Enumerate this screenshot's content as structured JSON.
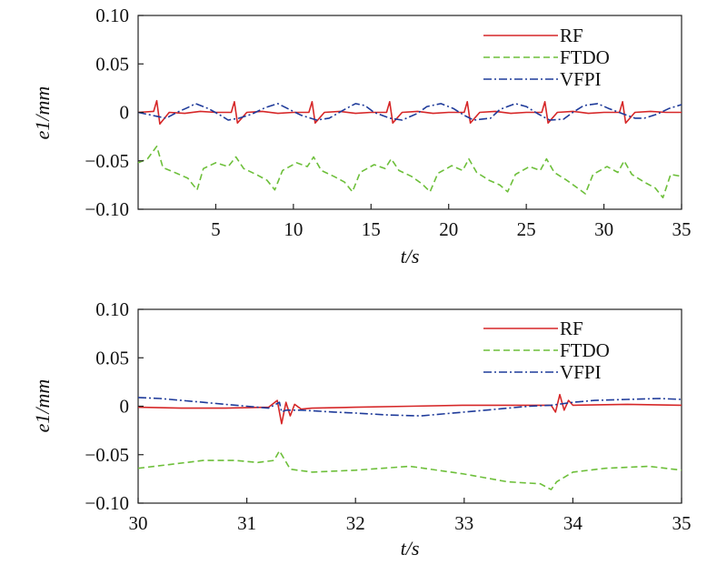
{
  "chart_data": [
    {
      "type": "line",
      "xlabel": "t/s",
      "ylabel": "e1/mm",
      "xlim": [
        0,
        35
      ],
      "ylim": [
        -0.1,
        0.1
      ],
      "xticks": [
        5,
        10,
        15,
        20,
        25,
        30,
        35
      ],
      "xtick_labels": [
        "5",
        "10",
        "15",
        "20",
        "25",
        "30",
        "35"
      ],
      "yticks": [
        0.1,
        0.05,
        0,
        -0.05,
        -0.1
      ],
      "ytick_labels": [
        "0.10",
        "0.05",
        "0",
        "−0.05",
        "−0.10"
      ],
      "legend_position": "top-right",
      "grid": false,
      "series": [
        {
          "name": "RF",
          "color": "#d62728",
          "style": "solid",
          "x": [
            0,
            1,
            1.2,
            1.4,
            2,
            3,
            4,
            5,
            6,
            6.2,
            6.4,
            7,
            8,
            9,
            10,
            11,
            11.2,
            11.4,
            12,
            13,
            14,
            15,
            16,
            16.2,
            16.4,
            17,
            18,
            19,
            20,
            21,
            21.2,
            21.4,
            22,
            23,
            24,
            25,
            26,
            26.2,
            26.4,
            27,
            28,
            29,
            30,
            31,
            31.2,
            31.4,
            32,
            33,
            34,
            35
          ],
          "y": [
            0,
            0.001,
            0.012,
            -0.012,
            0,
            -0.001,
            0.001,
            0,
            0,
            0.011,
            -0.011,
            0,
            0.001,
            -0.001,
            0,
            0,
            0.011,
            -0.011,
            0,
            0.001,
            -0.001,
            0,
            0,
            0.011,
            -0.011,
            0,
            0.001,
            -0.001,
            0,
            0,
            0.011,
            -0.011,
            0,
            0.001,
            -0.001,
            0,
            0,
            0.011,
            -0.011,
            0,
            0.001,
            -0.001,
            0,
            0,
            0.011,
            -0.011,
            0,
            0.001,
            0,
            0
          ]
        },
        {
          "name": "FTDO",
          "color": "#6dbf3a",
          "style": "dashed",
          "x": [
            0,
            0.6,
            1.2,
            1.6,
            2.5,
            3.2,
            3.8,
            4.2,
            5,
            5.8,
            6.3,
            6.8,
            7.6,
            8.3,
            8.8,
            9.3,
            10.2,
            10.9,
            11.3,
            11.8,
            12.6,
            13.3,
            13.8,
            14.3,
            15.2,
            15.9,
            16.3,
            16.8,
            17.6,
            18.3,
            18.8,
            19.3,
            20.2,
            20.9,
            21.3,
            21.8,
            22.6,
            23.3,
            23.8,
            24.3,
            25.2,
            25.9,
            26.3,
            26.8,
            27.6,
            28.3,
            28.8,
            29.3,
            30.2,
            30.9,
            31.3,
            31.8,
            32.6,
            33.3,
            33.8,
            34.3,
            35
          ],
          "y": [
            -0.052,
            -0.048,
            -0.035,
            -0.057,
            -0.063,
            -0.068,
            -0.08,
            -0.058,
            -0.052,
            -0.056,
            -0.046,
            -0.058,
            -0.064,
            -0.07,
            -0.08,
            -0.06,
            -0.052,
            -0.056,
            -0.046,
            -0.06,
            -0.066,
            -0.072,
            -0.082,
            -0.062,
            -0.054,
            -0.058,
            -0.048,
            -0.06,
            -0.066,
            -0.074,
            -0.082,
            -0.063,
            -0.055,
            -0.06,
            -0.048,
            -0.062,
            -0.07,
            -0.075,
            -0.082,
            -0.064,
            -0.056,
            -0.06,
            -0.048,
            -0.062,
            -0.07,
            -0.078,
            -0.084,
            -0.064,
            -0.056,
            -0.062,
            -0.05,
            -0.064,
            -0.072,
            -0.078,
            -0.088,
            -0.064,
            -0.066
          ]
        },
        {
          "name": "VFPI",
          "color": "#1f3b9a",
          "style": "dashdot",
          "x": [
            0,
            1.2,
            1.8,
            2.5,
            3.2,
            3.7,
            4.5,
            5.2,
            5.8,
            6.5,
            7.3,
            8.2,
            9,
            9.5,
            10.5,
            11.5,
            12.3,
            13.3,
            14,
            14.6,
            15.2,
            16.2,
            17,
            18,
            18.6,
            19.5,
            20.3,
            21,
            21.6,
            22.7,
            23.3,
            24.3,
            25,
            25.8,
            26.5,
            27.4,
            28,
            28.7,
            29.6,
            30.3,
            31.3,
            32,
            32.6,
            33.4,
            34.2,
            35
          ],
          "y": [
            0,
            -0.004,
            -0.006,
            0,
            0.005,
            0.009,
            0.004,
            -0.002,
            -0.008,
            -0.006,
            -0.002,
            0.005,
            0.009,
            0.005,
            -0.003,
            -0.008,
            -0.006,
            0.003,
            0.009,
            0.007,
            0,
            -0.006,
            -0.008,
            -0.001,
            0.006,
            0.009,
            0.004,
            -0.003,
            -0.008,
            -0.006,
            0.003,
            0.009,
            0.006,
            -0.002,
            -0.008,
            -0.007,
            0,
            0.007,
            0.009,
            0.004,
            -0.002,
            -0.006,
            -0.006,
            -0.002,
            0.004,
            0.008
          ]
        }
      ]
    },
    {
      "type": "line",
      "xlabel": "t/s",
      "ylabel": "e1/mm",
      "xlim": [
        30,
        35
      ],
      "ylim": [
        -0.1,
        0.1
      ],
      "xticks": [
        30,
        31,
        32,
        33,
        34,
        35
      ],
      "xtick_labels": [
        "30",
        "31",
        "32",
        "33",
        "34",
        "35"
      ],
      "yticks": [
        0.1,
        0.05,
        0,
        -0.05,
        -0.1
      ],
      "ytick_labels": [
        "0.10",
        "0.05",
        "0",
        "−0.05",
        "−0.10"
      ],
      "legend_position": "top-right",
      "grid": false,
      "series": [
        {
          "name": "RF",
          "color": "#d62728",
          "style": "solid",
          "x": [
            30,
            30.4,
            30.8,
            31.2,
            31.28,
            31.32,
            31.36,
            31.4,
            31.44,
            31.5,
            31.6,
            32,
            32.5,
            33,
            33.5,
            33.8,
            33.84,
            33.88,
            33.92,
            33.96,
            34,
            34.5,
            35
          ],
          "y": [
            -0.001,
            -0.002,
            -0.002,
            -0.001,
            0.006,
            -0.018,
            0.004,
            -0.01,
            0.002,
            -0.003,
            -0.002,
            -0.001,
            0,
            0.001,
            0.001,
            0.001,
            -0.006,
            0.012,
            -0.004,
            0.006,
            0.001,
            0.002,
            0.001
          ]
        },
        {
          "name": "FTDO",
          "color": "#6dbf3a",
          "style": "dashed",
          "x": [
            30,
            30.3,
            30.6,
            30.9,
            31.1,
            31.25,
            31.3,
            31.4,
            31.6,
            32,
            32.5,
            33,
            33.4,
            33.7,
            33.8,
            33.85,
            34,
            34.3,
            34.7,
            35
          ],
          "y": [
            -0.064,
            -0.06,
            -0.056,
            -0.056,
            -0.058,
            -0.056,
            -0.046,
            -0.065,
            -0.068,
            -0.066,
            -0.062,
            -0.07,
            -0.078,
            -0.08,
            -0.086,
            -0.078,
            -0.068,
            -0.064,
            -0.062,
            -0.066
          ]
        },
        {
          "name": "VFPI",
          "color": "#1f3b9a",
          "style": "dashdot",
          "x": [
            30,
            30.2,
            30.4,
            30.6,
            30.8,
            31,
            31.2,
            31.3,
            31.32,
            31.36,
            31.5,
            31.8,
            32,
            32.3,
            32.6,
            32.8,
            33,
            33.2,
            33.4,
            33.6,
            33.8,
            34,
            34.2,
            34.5,
            34.8,
            35
          ],
          "y": [
            0.009,
            0.008,
            0.006,
            0.004,
            0.002,
            0,
            -0.002,
            0.004,
            -0.006,
            -0.004,
            -0.004,
            -0.006,
            -0.007,
            -0.009,
            -0.01,
            -0.008,
            -0.006,
            -0.004,
            -0.002,
            0,
            0.001,
            0.004,
            0.006,
            0.007,
            0.008,
            0.007
          ]
        }
      ]
    }
  ]
}
